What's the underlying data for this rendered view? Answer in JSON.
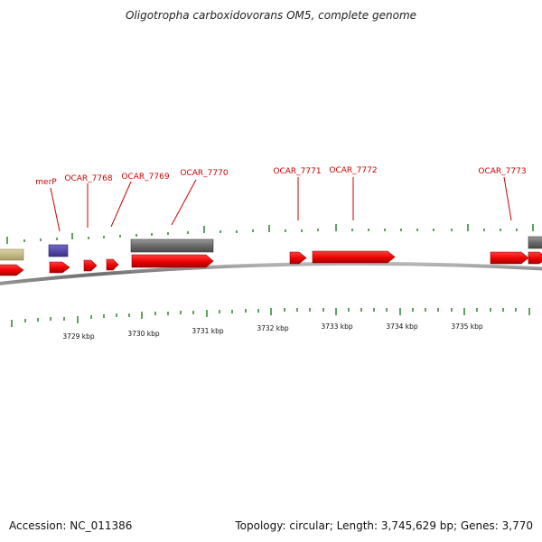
{
  "title": "Oligotropha carboxidovorans OM5, complete genome",
  "footer": {
    "accession": "Accession: NC_011386",
    "summary": "Topology: circular; Length: 3,745,629 bp; Genes: 3,770"
  },
  "colors": {
    "cds": "#ee0000",
    "cds_dark": "#990000",
    "other_feature": "#6e6e6e",
    "other_feature_light": "#a8a8a8",
    "blue_feature": "#4a3f9e",
    "tan_feature": "#c8bc86",
    "tick": "#1a7a1a",
    "label": "#cc0000",
    "backbone": "#7a7a7a"
  },
  "gene_labels": [
    "merP",
    "OCAR_7768",
    "OCAR_7769",
    "OCAR_7770",
    "OCAR_7771",
    "OCAR_7772",
    "OCAR_7773"
  ],
  "kbp_labels": [
    "3729 kbp",
    "3730 kbp",
    "3731 kbp",
    "3732 kbp",
    "3733 kbp",
    "3734 kbp",
    "3735 kbp"
  ]
}
